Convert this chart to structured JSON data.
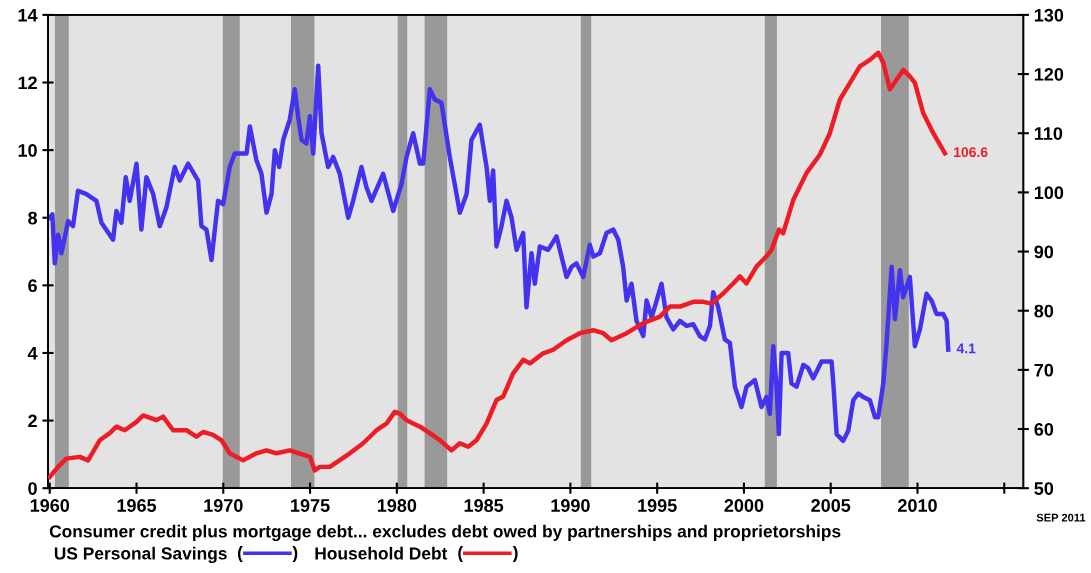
{
  "chart_data": {
    "type": "line",
    "xlim": [
      1959.9,
      2016.1
    ],
    "xticks": [
      {
        "value": 1960,
        "label": "1960"
      },
      {
        "value": 1965,
        "label": "1965"
      },
      {
        "value": 1970,
        "label": "1970"
      },
      {
        "value": 1975,
        "label": "1975"
      },
      {
        "value": 1980,
        "label": "1980"
      },
      {
        "value": 1985,
        "label": "1985"
      },
      {
        "value": 1990,
        "label": "1990"
      },
      {
        "value": 1995,
        "label": "1995"
      },
      {
        "value": 2000,
        "label": "2000"
      },
      {
        "value": 2005,
        "label": "2005"
      },
      {
        "value": 2010,
        "label": "2010"
      },
      {
        "value": 2015,
        "label": null
      }
    ],
    "ylim": [
      0,
      14
    ],
    "yticks": [
      0,
      2,
      4,
      6,
      8,
      10,
      12,
      14
    ],
    "y2lim": [
      50,
      130
    ],
    "y2ticks": [
      50,
      60,
      70,
      80,
      90,
      100,
      110,
      120,
      130
    ],
    "grid": false,
    "legend": "bottom",
    "line_style": "solid",
    "series": [
      {
        "name": "US Personal Savings",
        "color": "#4433ee",
        "x": [
          1960.0,
          1960.15,
          1960.29,
          1960.48,
          1960.67,
          1961.06,
          1961.34,
          1961.63,
          1962.11,
          1962.69,
          1962.98,
          1963.65,
          1963.84,
          1964.13,
          1964.38,
          1964.61,
          1965.0,
          1965.28,
          1965.57,
          1965.96,
          1966.34,
          1966.72,
          1967.2,
          1967.49,
          1967.97,
          1968.55,
          1968.74,
          1969.03,
          1969.32,
          1969.7,
          1969.99,
          1970.37,
          1970.66,
          1971.34,
          1971.53,
          1971.91,
          1972.2,
          1972.49,
          1972.78,
          1972.97,
          1973.22,
          1973.45,
          1973.83,
          1974.12,
          1974.31,
          1974.51,
          1974.79,
          1974.99,
          1975.18,
          1975.47,
          1975.66,
          1976.04,
          1976.33,
          1976.71,
          1977.2,
          1977.48,
          1977.96,
          1978.25,
          1978.54,
          1979.21,
          1979.79,
          1980.27,
          1980.56,
          1980.94,
          1981.33,
          1981.52,
          1981.9,
          1982.19,
          1982.57,
          1983.05,
          1983.63,
          1984.02,
          1984.3,
          1984.78,
          1985.17,
          1985.36,
          1985.55,
          1985.74,
          1986.03,
          1986.32,
          1986.61,
          1986.9,
          1987.28,
          1987.47,
          1987.76,
          1987.95,
          1988.24,
          1988.72,
          1989.2,
          1989.49,
          1989.78,
          1990.07,
          1990.35,
          1990.74,
          1991.12,
          1991.32,
          1991.7,
          1992.08,
          1992.47,
          1992.76,
          1993.04,
          1993.24,
          1993.52,
          1993.81,
          1994.2,
          1994.39,
          1994.68,
          1994.97,
          1995.25,
          1995.54,
          1995.93,
          1996.31,
          1996.7,
          1997.08,
          1997.46,
          1997.75,
          1998.04,
          1998.23,
          1998.52,
          1998.9,
          1999.19,
          1999.48,
          1999.86,
          2000.15,
          2000.63,
          2001.01,
          2001.3,
          2001.49,
          2001.69,
          2001.88,
          2002.01,
          2002.17,
          2002.55,
          2002.74,
          2003.03,
          2003.42,
          2003.7,
          2003.99,
          2004.28,
          2004.47,
          2005.05,
          2005.15,
          2005.34,
          2005.72,
          2006.01,
          2006.3,
          2006.59,
          2006.87,
          2007.26,
          2007.55,
          2007.74,
          2008.03,
          2008.22,
          2008.51,
          2008.7,
          2008.99,
          2009.18,
          2009.56,
          2009.85,
          2010.14,
          2010.52,
          2010.81,
          2011.1,
          2011.48,
          2011.68,
          2011.77
        ],
        "value_labels": [
          null,
          null,
          null,
          null,
          null,
          null,
          null,
          null,
          null,
          null,
          null,
          null,
          null,
          null,
          null,
          null,
          null,
          null,
          null,
          null,
          null,
          null,
          null,
          null,
          null,
          null,
          null,
          null,
          null,
          null,
          null,
          null,
          null,
          null,
          null,
          null,
          null,
          null,
          null,
          null,
          null,
          null,
          null,
          null,
          null,
          null,
          null,
          null,
          null,
          null,
          null,
          null,
          null,
          null,
          null,
          null,
          null,
          null,
          null,
          null,
          null,
          null,
          null,
          null,
          null,
          null,
          null,
          null,
          null,
          null,
          null,
          null,
          null,
          null,
          null,
          null,
          null,
          null,
          null,
          null,
          null,
          null,
          null,
          null,
          null,
          null,
          null,
          null,
          null,
          null,
          null,
          null,
          null,
          null,
          null,
          null,
          null,
          null,
          null,
          null,
          null,
          null,
          null,
          null,
          null,
          null,
          null,
          null,
          null,
          null,
          null,
          null,
          null,
          null,
          null,
          null,
          null,
          null,
          null,
          null,
          null,
          null,
          null,
          null,
          null,
          null,
          null,
          null,
          null,
          null,
          null,
          null,
          null,
          null,
          null,
          null,
          null,
          null,
          null,
          null,
          null,
          null,
          null,
          null,
          null,
          null,
          null,
          null,
          null,
          null,
          null,
          null,
          null,
          null,
          null,
          null,
          null,
          null,
          null,
          null,
          null,
          null,
          null,
          null,
          null,
          "4.1"
        ],
        "values": [
          8.0,
          8.1,
          6.65,
          7.5,
          6.95,
          7.9,
          7.75,
          8.8,
          8.7,
          8.5,
          7.85,
          7.35,
          8.2,
          7.85,
          9.2,
          8.5,
          9.6,
          7.65,
          9.2,
          8.7,
          7.75,
          8.3,
          9.5,
          9.1,
          9.6,
          9.1,
          7.75,
          7.65,
          6.75,
          8.5,
          8.4,
          9.5,
          9.9,
          9.9,
          10.7,
          9.7,
          9.3,
          8.15,
          8.7,
          10.0,
          9.5,
          10.3,
          10.9,
          11.8,
          11.0,
          10.3,
          10.2,
          11.0,
          9.9,
          12.5,
          10.5,
          9.5,
          9.8,
          9.3,
          8.0,
          8.5,
          9.5,
          8.9,
          8.5,
          9.3,
          8.2,
          9.0,
          9.8,
          10.5,
          9.6,
          9.6,
          11.8,
          11.5,
          11.4,
          9.8,
          8.15,
          8.7,
          10.3,
          10.75,
          9.5,
          8.5,
          9.4,
          7.15,
          7.75,
          8.5,
          8.0,
          7.05,
          7.55,
          5.35,
          6.95,
          6.05,
          7.15,
          7.05,
          7.45,
          6.85,
          6.25,
          6.55,
          6.65,
          6.25,
          7.2,
          6.85,
          6.95,
          7.55,
          7.65,
          7.35,
          6.55,
          5.55,
          6.05,
          4.95,
          4.5,
          5.55,
          5.05,
          5.55,
          6.05,
          5.05,
          4.7,
          4.95,
          4.8,
          4.85,
          4.5,
          4.4,
          4.8,
          5.8,
          5.35,
          4.4,
          4.3,
          3.0,
          2.4,
          3.0,
          3.2,
          2.4,
          2.7,
          2.2,
          4.2,
          3.0,
          1.6,
          4.0,
          4.0,
          3.1,
          3.0,
          3.65,
          3.55,
          3.25,
          3.55,
          3.75,
          3.75,
          3.1,
          1.6,
          1.4,
          1.7,
          2.6,
          2.8,
          2.7,
          2.6,
          2.1,
          2.1,
          3.1,
          4.3,
          6.55,
          5.0,
          6.45,
          5.65,
          6.25,
          4.2,
          4.7,
          5.75,
          5.55,
          5.15,
          5.15,
          4.95,
          4.1
        ]
      },
      {
        "name": "Household Debt",
        "color": "#ee1c25",
        "axis": "y2",
        "x": [
          1960.0,
          1960.48,
          1960.96,
          1961.73,
          1962.21,
          1962.88,
          1963.46,
          1963.84,
          1964.32,
          1965.0,
          1965.38,
          1966.15,
          1966.53,
          1967.11,
          1967.88,
          1968.45,
          1968.84,
          1969.41,
          1969.9,
          1970.37,
          1971.14,
          1971.91,
          1972.49,
          1973.06,
          1973.83,
          1974.99,
          1975.27,
          1975.56,
          1976.14,
          1977.29,
          1978.06,
          1978.83,
          1979.4,
          1979.88,
          1980.17,
          1980.56,
          1981.33,
          1981.9,
          1982.48,
          1983.15,
          1983.63,
          1984.11,
          1984.59,
          1985.17,
          1985.74,
          1986.13,
          1986.7,
          1987.28,
          1987.67,
          1988.43,
          1989.01,
          1989.78,
          1990.55,
          1991.32,
          1991.89,
          1992.37,
          1993.24,
          1994.2,
          1995.16,
          1995.73,
          1996.31,
          1997.08,
          1997.66,
          1998.13,
          1998.8,
          1999.38,
          1999.77,
          2000.15,
          2000.73,
          2001.3,
          2001.59,
          2002.02,
          2002.26,
          2002.84,
          2003.61,
          2004.38,
          2004.95,
          2005.53,
          2006.11,
          2006.68,
          2007.26,
          2007.74,
          2008.03,
          2008.41,
          2008.8,
          2009.18,
          2009.56,
          2009.85,
          2010.33,
          2010.91,
          2011.58
        ],
        "value_labels": [
          null,
          null,
          null,
          null,
          null,
          null,
          null,
          null,
          null,
          null,
          null,
          null,
          null,
          null,
          null,
          null,
          null,
          null,
          null,
          null,
          null,
          null,
          null,
          null,
          null,
          null,
          null,
          null,
          null,
          null,
          null,
          null,
          null,
          null,
          null,
          null,
          null,
          null,
          null,
          null,
          null,
          null,
          null,
          null,
          null,
          null,
          null,
          null,
          null,
          null,
          null,
          null,
          null,
          null,
          null,
          null,
          null,
          null,
          null,
          null,
          null,
          null,
          null,
          null,
          null,
          null,
          null,
          null,
          null,
          null,
          null,
          null,
          null,
          null,
          null,
          null,
          null,
          null,
          null,
          null,
          null,
          null,
          null,
          null,
          null,
          null,
          null,
          null,
          null,
          null,
          "106.6"
        ],
        "values": [
          51.9,
          53.6,
          55.0,
          55.3,
          54.7,
          58.1,
          59.3,
          60.4,
          59.8,
          61.2,
          62.3,
          61.5,
          62.1,
          59.8,
          59.8,
          58.7,
          59.5,
          59.0,
          58.1,
          55.9,
          54.7,
          55.9,
          56.4,
          55.9,
          56.4,
          55.3,
          53.0,
          53.6,
          53.6,
          55.9,
          57.6,
          59.8,
          60.9,
          62.9,
          62.6,
          61.5,
          60.4,
          59.3,
          58.1,
          56.4,
          57.6,
          57.0,
          58.1,
          60.9,
          64.9,
          65.5,
          69.4,
          71.7,
          71.1,
          72.8,
          73.4,
          75.0,
          76.2,
          76.7,
          76.2,
          75.0,
          76.2,
          77.9,
          79.0,
          80.7,
          80.7,
          81.5,
          81.5,
          81.2,
          82.9,
          84.6,
          85.8,
          84.6,
          87.5,
          89.2,
          90.3,
          93.7,
          93.1,
          98.7,
          103.3,
          106.4,
          110.0,
          115.7,
          118.5,
          121.3,
          122.4,
          123.6,
          121.9,
          117.4,
          119.1,
          120.7,
          119.6,
          118.5,
          113.4,
          110.0,
          106.6
        ]
      }
    ],
    "bands": [
      {
        "axis": "x",
        "from": 1960.3,
        "to": 1961.1,
        "color": "#999999"
      },
      {
        "axis": "x",
        "from": 1969.97,
        "to": 1970.95,
        "color": "#999999"
      },
      {
        "axis": "x",
        "from": 1973.9,
        "to": 1975.25,
        "color": "#999999"
      },
      {
        "axis": "x",
        "from": 1980.05,
        "to": 1980.6,
        "color": "#999999"
      },
      {
        "axis": "x",
        "from": 1981.6,
        "to": 1982.9,
        "color": "#999999"
      },
      {
        "axis": "x",
        "from": 1990.6,
        "to": 1991.2,
        "color": "#999999"
      },
      {
        "axis": "x",
        "from": 2001.2,
        "to": 2001.9,
        "color": "#999999"
      },
      {
        "axis": "x",
        "from": 2007.9,
        "to": 2009.5,
        "color": "#999999"
      }
    ],
    "annotations": [
      "Consumer credit plus mortgage debt... excludes debt owed by partnerships and proprietorships",
      "SEP 2011",
      "(",
      ")",
      "(",
      ")"
    ]
  }
}
